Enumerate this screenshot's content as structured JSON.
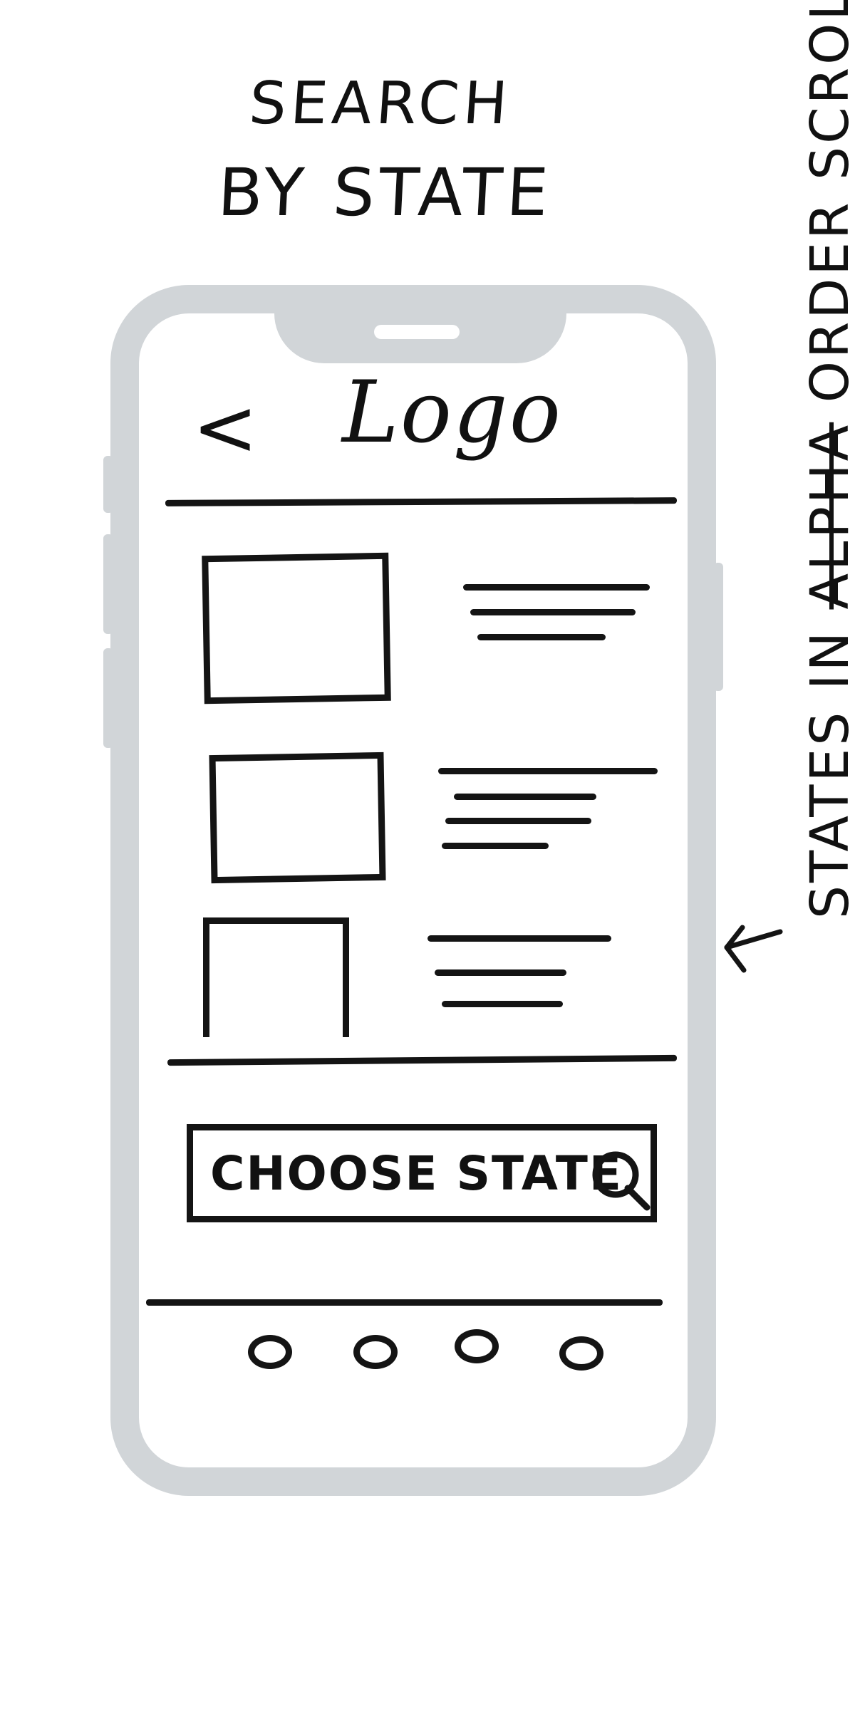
{
  "title": {
    "line1": "SEARCH",
    "line2": "BY STATE"
  },
  "header": {
    "back_label": "<",
    "logo_text": "Logo"
  },
  "search": {
    "button_label": "CHOOSE STATE",
    "icon": "search-icon"
  },
  "list": {
    "items": [
      {
        "icon": "image-placeholder-icon"
      },
      {
        "icon": "image-placeholder-icon"
      },
      {
        "icon": "image-placeholder-icon"
      }
    ]
  },
  "bottom_nav": {
    "items": [
      {
        "icon": "nav-circle-icon"
      },
      {
        "icon": "nav-circle-icon"
      },
      {
        "icon": "nav-circle-icon"
      },
      {
        "icon": "nav-circle-icon"
      }
    ]
  },
  "annotation": {
    "part1": "STATES IN ",
    "struck": "ALPHA",
    "part2": " ORDER ",
    "part3": "SCROLL",
    "arrow_icon": "arrow-left-icon"
  },
  "colors": {
    "ink": "#141414",
    "phone_frame": "#d1d5d8",
    "background": "#ffffff"
  }
}
